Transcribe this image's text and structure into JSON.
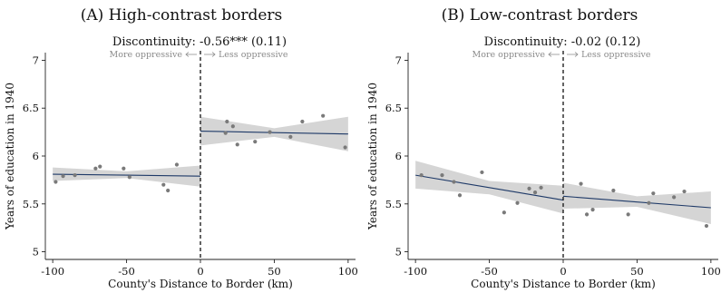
{
  "chart_data": [
    {
      "type": "scatter",
      "panel_label": "(A) High-contrast borders",
      "discontinuity_label": "Discontinuity: -0.56*** (0.11)",
      "left_side_label": "More oppressive",
      "right_side_label": "Less oppressive",
      "xlabel": "County's Distance to Border (km)",
      "ylabel": "Years of education in 1940",
      "xlim": [
        -105,
        105
      ],
      "ylim": [
        4.92,
        7.08
      ],
      "xticks": [
        -100,
        -50,
        0,
        50,
        100
      ],
      "yticks": [
        5,
        5.5,
        6,
        6.5,
        7
      ],
      "ytick_labels": [
        "5",
        "5.5",
        "6",
        "6.5",
        "7"
      ],
      "grid": false,
      "cutoff_x": 0,
      "points": [
        {
          "x": -98,
          "y": 5.73
        },
        {
          "x": -93,
          "y": 5.79
        },
        {
          "x": -85,
          "y": 5.8
        },
        {
          "x": -71,
          "y": 5.87
        },
        {
          "x": -68,
          "y": 5.89
        },
        {
          "x": -52,
          "y": 5.87
        },
        {
          "x": -48,
          "y": 5.78
        },
        {
          "x": -25,
          "y": 5.7
        },
        {
          "x": -22,
          "y": 5.64
        },
        {
          "x": -16,
          "y": 5.91
        },
        {
          "x": 17,
          "y": 6.24
        },
        {
          "x": 18,
          "y": 6.36
        },
        {
          "x": 22,
          "y": 6.31
        },
        {
          "x": 25,
          "y": 6.12
        },
        {
          "x": 37,
          "y": 6.15
        },
        {
          "x": 47,
          "y": 6.25
        },
        {
          "x": 61,
          "y": 6.2
        },
        {
          "x": 69,
          "y": 6.36
        },
        {
          "x": 83,
          "y": 6.42
        },
        {
          "x": 98,
          "y": 6.09
        }
      ],
      "fit_left": {
        "x": [
          -100,
          -50,
          0
        ],
        "y": [
          5.81,
          5.8,
          5.79
        ],
        "lower": [
          5.74,
          5.77,
          5.68
        ],
        "upper": [
          5.88,
          5.84,
          5.9
        ]
      },
      "fit_right": {
        "x": [
          0,
          50,
          100
        ],
        "y": [
          6.26,
          6.245,
          6.23
        ],
        "lower": [
          6.11,
          6.2,
          6.05
        ],
        "upper": [
          6.41,
          6.29,
          6.41
        ]
      }
    },
    {
      "type": "scatter",
      "panel_label": "(B) Low-contrast borders",
      "discontinuity_label": "Discontinuity: -0.02 (0.12)",
      "left_side_label": "More oppressive",
      "right_side_label": "Less oppressive",
      "xlabel": "County's Distance to Border (km)",
      "ylabel": "Years of education in 1940",
      "xlim": [
        -105,
        105
      ],
      "ylim": [
        4.92,
        7.08
      ],
      "xticks": [
        -100,
        -50,
        0,
        50,
        100
      ],
      "yticks": [
        5,
        5.5,
        6,
        6.5,
        7
      ],
      "ytick_labels": [
        "5",
        "5.5",
        "6",
        "6.5",
        "7"
      ],
      "grid": false,
      "cutoff_x": 0,
      "points": [
        {
          "x": -96,
          "y": 5.8
        },
        {
          "x": -82,
          "y": 5.8
        },
        {
          "x": -74,
          "y": 5.73
        },
        {
          "x": -70,
          "y": 5.59
        },
        {
          "x": -55,
          "y": 5.83
        },
        {
          "x": -40,
          "y": 5.41
        },
        {
          "x": -31,
          "y": 5.51
        },
        {
          "x": -23,
          "y": 5.66
        },
        {
          "x": -19,
          "y": 5.62
        },
        {
          "x": -15,
          "y": 5.67
        },
        {
          "x": 12,
          "y": 5.71
        },
        {
          "x": 16,
          "y": 5.39
        },
        {
          "x": 20,
          "y": 5.44
        },
        {
          "x": 34,
          "y": 5.64
        },
        {
          "x": 44,
          "y": 5.39
        },
        {
          "x": 58,
          "y": 5.51
        },
        {
          "x": 61,
          "y": 5.61
        },
        {
          "x": 75,
          "y": 5.57
        },
        {
          "x": 82,
          "y": 5.63
        },
        {
          "x": 97,
          "y": 5.27
        }
      ],
      "fit_left": {
        "x": [
          -100,
          -50,
          0
        ],
        "y": [
          5.8,
          5.67,
          5.54
        ],
        "lower": [
          5.66,
          5.6,
          5.4
        ],
        "upper": [
          5.95,
          5.74,
          5.69
        ]
      },
      "fit_right": {
        "x": [
          0,
          50,
          100
        ],
        "y": [
          5.58,
          5.52,
          5.46
        ],
        "lower": [
          5.45,
          5.47,
          5.29
        ],
        "upper": [
          5.72,
          5.58,
          5.63
        ]
      }
    }
  ],
  "colors": {
    "fit_line": "#1f3a68",
    "ci_band": "#d5d5d5",
    "points": "#7a7a7a",
    "axis": "#222222",
    "note": "#8a8a8a"
  }
}
